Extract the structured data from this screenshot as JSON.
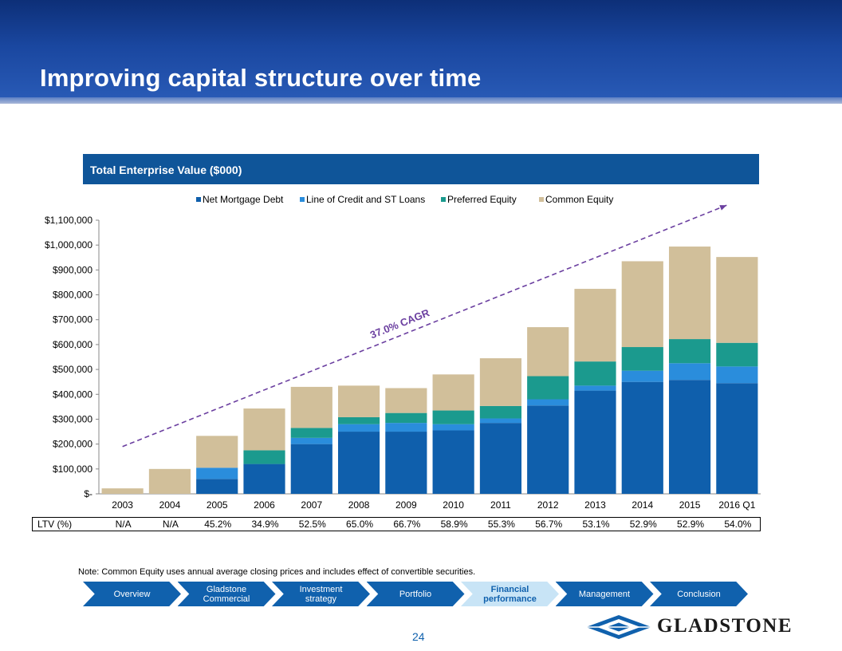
{
  "slide": {
    "title": "Improving capital structure over time",
    "page_number": "24",
    "note": "Note: Common Equity uses annual average closing prices and includes effect of convertible securities.",
    "logo_text": "GLADSTONE"
  },
  "chart_data": {
    "type": "bar",
    "stacked": true,
    "title": "Total Enterprise Value ($000)",
    "categories": [
      "2003",
      "2004",
      "2005",
      "2006",
      "2007",
      "2008",
      "2009",
      "2010",
      "2011",
      "2012",
      "2013",
      "2014",
      "2015",
      "2016 Q1"
    ],
    "ylim": [
      0,
      1100000
    ],
    "yticks": [
      0,
      100000,
      200000,
      300000,
      400000,
      500000,
      600000,
      700000,
      800000,
      900000,
      1000000,
      1100000
    ],
    "ytick_labels": [
      "$-",
      "$100,000",
      "$200,000",
      "$300,000",
      "$400,000",
      "$500,000",
      "$600,000",
      "$700,000",
      "$800,000",
      "$900,000",
      "$1,000,000",
      "$1,100,000"
    ],
    "legend_position": "top",
    "series": [
      {
        "name": "Net Mortgage Debt",
        "color": "#0f5fac",
        "values": [
          0,
          0,
          60000,
          120000,
          200000,
          250000,
          250000,
          255000,
          285000,
          355000,
          415000,
          450000,
          458000,
          445000
        ]
      },
      {
        "name": "Line of Credit and ST Loans",
        "color": "#2a8ddc",
        "values": [
          0,
          0,
          45000,
          0,
          25000,
          30000,
          35000,
          25000,
          18000,
          25000,
          20000,
          45000,
          67000,
          67000
        ]
      },
      {
        "name": "Preferred Equity",
        "color": "#1b9a8e",
        "values": [
          0,
          0,
          0,
          55000,
          40000,
          28000,
          40000,
          55000,
          50000,
          93000,
          97000,
          95000,
          97000,
          95000
        ]
      },
      {
        "name": "Common Equity",
        "color": "#d1bf9a",
        "values": [
          22000,
          100000,
          128000,
          168000,
          165000,
          127000,
          100000,
          145000,
          192000,
          197000,
          292000,
          345000,
          372000,
          345000
        ]
      }
    ],
    "trend": {
      "label": "37.0% CAGR",
      "color": "#6b3fa0",
      "from_value": 190000,
      "to_value": 1160000
    }
  },
  "ltv": {
    "label": "LTV (%)",
    "values": [
      "N/A",
      "N/A",
      "45.2%",
      "34.9%",
      "52.5%",
      "65.0%",
      "66.7%",
      "58.9%",
      "55.3%",
      "56.7%",
      "53.1%",
      "52.9%",
      "52.9%",
      "54.0%"
    ]
  },
  "nav": {
    "items": [
      "Overview",
      "Gladstone Commercial",
      "Investment strategy",
      "Portfolio",
      "Financial performance",
      "Management",
      "Conclusion"
    ],
    "active_index": 4
  }
}
